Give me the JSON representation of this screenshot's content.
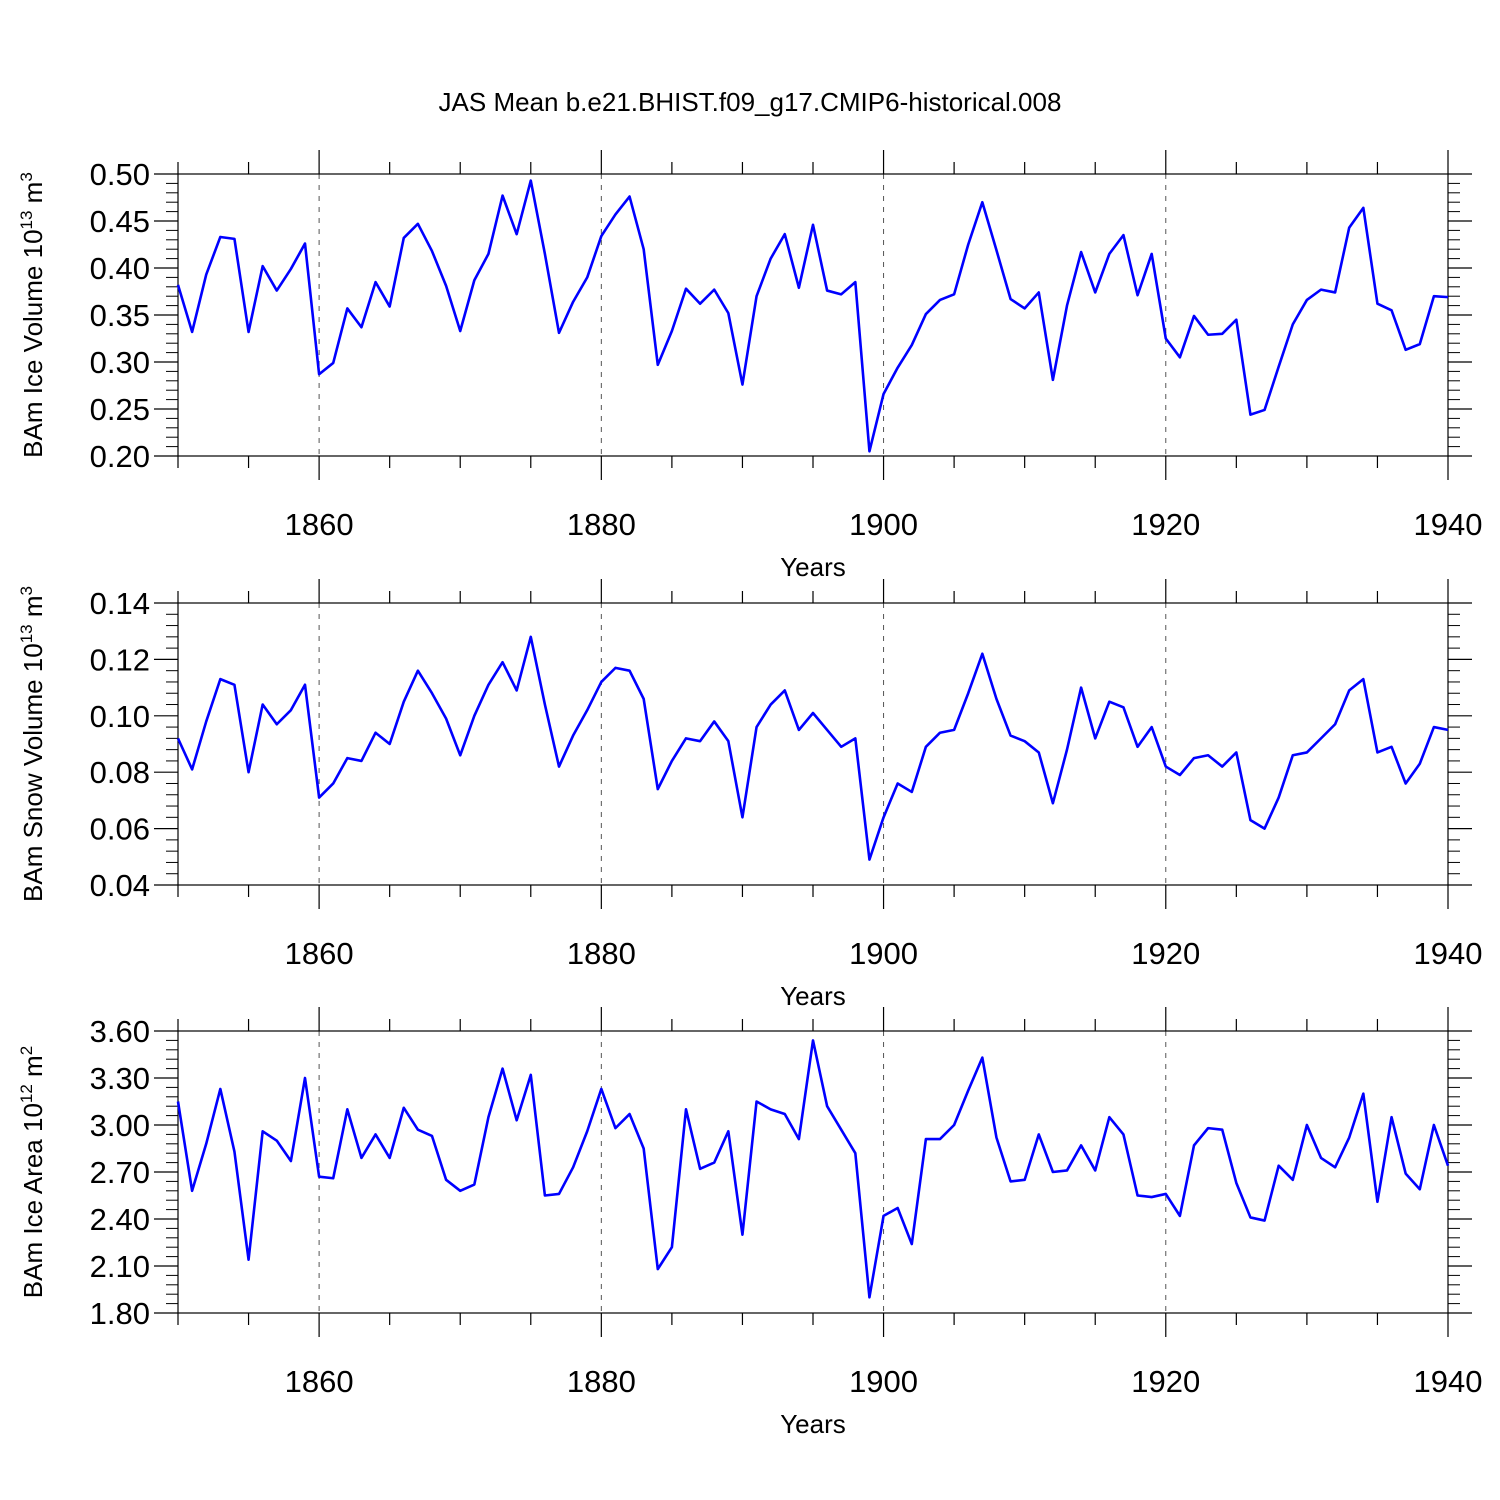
{
  "title": "JAS Mean b.e21.BHIST.f09_g17.CMIP6-historical.008",
  "colors": {
    "line": "#0000ff",
    "axis": "#000000",
    "grid": "#555555"
  },
  "chart_data": [
    {
      "type": "line",
      "name": "ice-volume",
      "ylabel_main": "BAm Ice Volume 10",
      "ylabel_exp": "13",
      "ylabel_unit": " m",
      "ylabel_unit_exp": "3",
      "xlabel": "Years",
      "xlim": [
        1850,
        1940
      ],
      "ylim": [
        0.2,
        0.5
      ],
      "yticks": [
        0.2,
        0.25,
        0.3,
        0.35,
        0.4,
        0.45,
        0.5
      ],
      "ytick_labels": [
        "0.20",
        "0.25",
        "0.30",
        "0.35",
        "0.40",
        "0.45",
        "0.50"
      ],
      "xticks": [
        1860,
        1880,
        1900,
        1920,
        1940
      ],
      "xtick_labels": [
        "1860",
        "1880",
        "1900",
        "1920",
        "1940"
      ],
      "start_year": 1850,
      "values": [
        0.382,
        0.332,
        0.393,
        0.433,
        0.431,
        0.332,
        0.402,
        0.376,
        0.399,
        0.426,
        0.287,
        0.299,
        0.357,
        0.337,
        0.385,
        0.359,
        0.432,
        0.447,
        0.418,
        0.381,
        0.333,
        0.387,
        0.415,
        0.477,
        0.436,
        0.493,
        0.415,
        0.331,
        0.364,
        0.39,
        0.434,
        0.457,
        0.476,
        0.42,
        0.297,
        0.333,
        0.378,
        0.362,
        0.377,
        0.352,
        0.276,
        0.37,
        0.41,
        0.436,
        0.379,
        0.446,
        0.376,
        0.372,
        0.385,
        0.205,
        0.266,
        0.294,
        0.318,
        0.351,
        0.366,
        0.372,
        0.425,
        0.47,
        0.419,
        0.367,
        0.357,
        0.374,
        0.281,
        0.36,
        0.417,
        0.374,
        0.415,
        0.435,
        0.371,
        0.415,
        0.325,
        0.305,
        0.349,
        0.329,
        0.33,
        0.345,
        0.244,
        0.249,
        0.295,
        0.34,
        0.366,
        0.377,
        0.374,
        0.443,
        0.464,
        0.362,
        0.355,
        0.313,
        0.319,
        0.37,
        0.369
      ]
    },
    {
      "type": "line",
      "name": "snow-volume",
      "ylabel_main": "BAm Snow Volume 10",
      "ylabel_exp": "13",
      "ylabel_unit": " m",
      "ylabel_unit_exp": "3",
      "xlabel": "Years",
      "xlim": [
        1850,
        1940
      ],
      "ylim": [
        0.04,
        0.14
      ],
      "yticks": [
        0.04,
        0.06,
        0.08,
        0.1,
        0.12,
        0.14
      ],
      "ytick_labels": [
        "0.04",
        "0.06",
        "0.08",
        "0.10",
        "0.12",
        "0.14"
      ],
      "xticks": [
        1860,
        1880,
        1900,
        1920,
        1940
      ],
      "xtick_labels": [
        "1860",
        "1880",
        "1900",
        "1920",
        "1940"
      ],
      "start_year": 1850,
      "values": [
        0.092,
        0.081,
        0.098,
        0.113,
        0.111,
        0.08,
        0.104,
        0.097,
        0.102,
        0.111,
        0.071,
        0.076,
        0.085,
        0.084,
        0.094,
        0.09,
        0.105,
        0.116,
        0.108,
        0.099,
        0.086,
        0.1,
        0.111,
        0.119,
        0.109,
        0.128,
        0.104,
        0.082,
        0.093,
        0.102,
        0.112,
        0.117,
        0.116,
        0.106,
        0.074,
        0.084,
        0.092,
        0.091,
        0.098,
        0.091,
        0.064,
        0.096,
        0.104,
        0.109,
        0.095,
        0.101,
        0.095,
        0.089,
        0.092,
        0.049,
        0.064,
        0.076,
        0.073,
        0.089,
        0.094,
        0.095,
        0.108,
        0.122,
        0.106,
        0.093,
        0.091,
        0.087,
        0.069,
        0.088,
        0.11,
        0.092,
        0.105,
        0.103,
        0.089,
        0.096,
        0.082,
        0.079,
        0.085,
        0.086,
        0.082,
        0.087,
        0.063,
        0.06,
        0.071,
        0.086,
        0.087,
        0.092,
        0.097,
        0.109,
        0.113,
        0.087,
        0.089,
        0.076,
        0.083,
        0.096,
        0.095
      ]
    },
    {
      "type": "line",
      "name": "ice-area",
      "ylabel_main": "BAm Ice Area 10",
      "ylabel_exp": "12",
      "ylabel_unit": " m",
      "ylabel_unit_exp": "2",
      "xlabel": "Years",
      "xlim": [
        1850,
        1940
      ],
      "ylim": [
        1.8,
        3.6
      ],
      "yticks": [
        1.8,
        2.1,
        2.4,
        2.7,
        3.0,
        3.3,
        3.6
      ],
      "ytick_labels": [
        "1.80",
        "2.10",
        "2.40",
        "2.70",
        "3.00",
        "3.30",
        "3.60"
      ],
      "xticks": [
        1860,
        1880,
        1900,
        1920,
        1940
      ],
      "xtick_labels": [
        "1860",
        "1880",
        "1900",
        "1920",
        "1940"
      ],
      "start_year": 1850,
      "values": [
        3.15,
        2.58,
        2.88,
        3.23,
        2.83,
        2.14,
        2.96,
        2.9,
        2.77,
        3.3,
        2.67,
        2.66,
        3.1,
        2.79,
        2.94,
        2.79,
        3.11,
        2.97,
        2.93,
        2.65,
        2.58,
        2.62,
        3.05,
        3.36,
        3.03,
        3.32,
        2.55,
        2.56,
        2.73,
        2.96,
        3.23,
        2.98,
        3.07,
        2.85,
        2.08,
        2.22,
        3.1,
        2.72,
        2.76,
        2.96,
        2.3,
        3.15,
        3.1,
        3.07,
        2.91,
        3.54,
        3.12,
        2.97,
        2.82,
        1.9,
        2.42,
        2.47,
        2.24,
        2.91,
        2.91,
        3.0,
        3.22,
        3.43,
        2.92,
        2.64,
        2.65,
        2.94,
        2.7,
        2.71,
        2.87,
        2.71,
        3.05,
        2.94,
        2.55,
        2.54,
        2.56,
        2.42,
        2.87,
        2.98,
        2.97,
        2.63,
        2.41,
        2.39,
        2.74,
        2.65,
        3.0,
        2.79,
        2.73,
        2.92,
        3.2,
        2.51,
        3.05,
        2.69,
        2.59,
        3.0,
        2.74
      ]
    }
  ]
}
